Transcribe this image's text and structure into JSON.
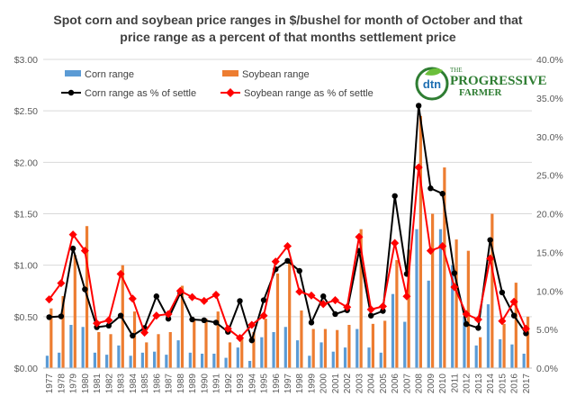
{
  "chart_data": {
    "type": "bar",
    "title_lines": [
      "Spot corn and soybean price ranges in $/bushel for month of October and that",
      "price range as a percent of that months settlement price"
    ],
    "x": [
      "1977",
      "1978",
      "1979",
      "1980",
      "1981",
      "1982",
      "1983",
      "1984",
      "1985",
      "1986",
      "1987",
      "1988",
      "1989",
      "1990",
      "1991",
      "1992",
      "1993",
      "1994",
      "1995",
      "1996",
      "1997",
      "1998",
      "1999",
      "2000",
      "2001",
      "2002",
      "2003",
      "2004",
      "2005",
      "2006",
      "2007",
      "2008",
      "2009",
      "2010",
      "2011",
      "2012",
      "2013",
      "2014",
      "2015",
      "2016",
      "2017"
    ],
    "left_axis": {
      "min": 0,
      "max": 3,
      "ticks": [
        "$0.00",
        "$0.50",
        "$1.00",
        "$1.50",
        "$2.00",
        "$2.50",
        "$3.00"
      ]
    },
    "right_axis": {
      "min": 0,
      "max": 40,
      "ticks": [
        "0.0%",
        "5.0%",
        "10.0%",
        "15.0%",
        "20.0%",
        "25.0%",
        "30.0%",
        "35.0%",
        "40.0%"
      ]
    },
    "bar_series": [
      {
        "name": "Corn range",
        "color": "#5b9bd5",
        "values": [
          0.12,
          0.15,
          0.42,
          0.4,
          0.15,
          0.13,
          0.22,
          0.12,
          0.15,
          0.16,
          0.13,
          0.27,
          0.15,
          0.14,
          0.14,
          0.1,
          0.2,
          0.07,
          0.3,
          0.35,
          0.4,
          0.27,
          0.12,
          0.25,
          0.16,
          0.2,
          0.38,
          0.2,
          0.15,
          0.72,
          0.45,
          1.35,
          0.85,
          1.35,
          1.0,
          0.5,
          0.22,
          0.62,
          0.28,
          0.23,
          0.14
        ]
      },
      {
        "name": "Soybean range",
        "color": "#ed7d31",
        "values": [
          0.58,
          0.7,
          1.1,
          1.38,
          0.35,
          0.33,
          1.0,
          0.55,
          0.25,
          0.33,
          0.35,
          0.8,
          0.48,
          0.48,
          0.55,
          0.25,
          0.3,
          0.35,
          0.48,
          0.92,
          1.05,
          0.56,
          0.38,
          0.38,
          0.37,
          0.42,
          1.35,
          0.43,
          0.46,
          1.05,
          1.15,
          2.45,
          1.5,
          1.95,
          1.25,
          1.14,
          0.3,
          1.5,
          0.43,
          0.83,
          0.5
        ]
      }
    ],
    "line_series": [
      {
        "name": "Corn range as % of settle",
        "color": "#000000",
        "values": [
          6.6,
          6.7,
          15.5,
          10.2,
          5.3,
          5.5,
          6.8,
          4.2,
          5.2,
          9.3,
          6.4,
          9.7,
          6.3,
          6.2,
          5.9,
          4.7,
          8.7,
          3.6,
          8.8,
          12.8,
          13.9,
          12.6,
          5.9,
          9.3,
          7.0,
          7.5,
          15.2,
          6.8,
          7.4,
          22.3,
          12.2,
          34.0,
          23.3,
          22.6,
          12.3,
          5.7,
          5.2,
          16.6,
          9.8,
          6.8,
          4.5
        ]
      },
      {
        "name": "Soybean range as % of settle",
        "color": "#ff0000",
        "values": [
          8.9,
          11.0,
          17.3,
          15.2,
          5.8,
          6.2,
          12.2,
          9.0,
          4.6,
          6.8,
          7.0,
          10.0,
          9.2,
          8.7,
          9.5,
          5.1,
          3.9,
          5.6,
          6.8,
          13.8,
          15.8,
          9.9,
          9.4,
          8.3,
          8.8,
          7.9,
          17.0,
          7.6,
          8.0,
          16.2,
          9.3,
          26.0,
          15.2,
          15.8,
          10.5,
          7.0,
          6.3,
          14.2,
          6.1,
          8.6,
          5.1
        ]
      }
    ],
    "legend_position": "top-left",
    "grid": true,
    "logo": {
      "mark": "dtn",
      "lines": [
        "THE",
        "PROGRESSIVE",
        "FARMER"
      ]
    }
  }
}
